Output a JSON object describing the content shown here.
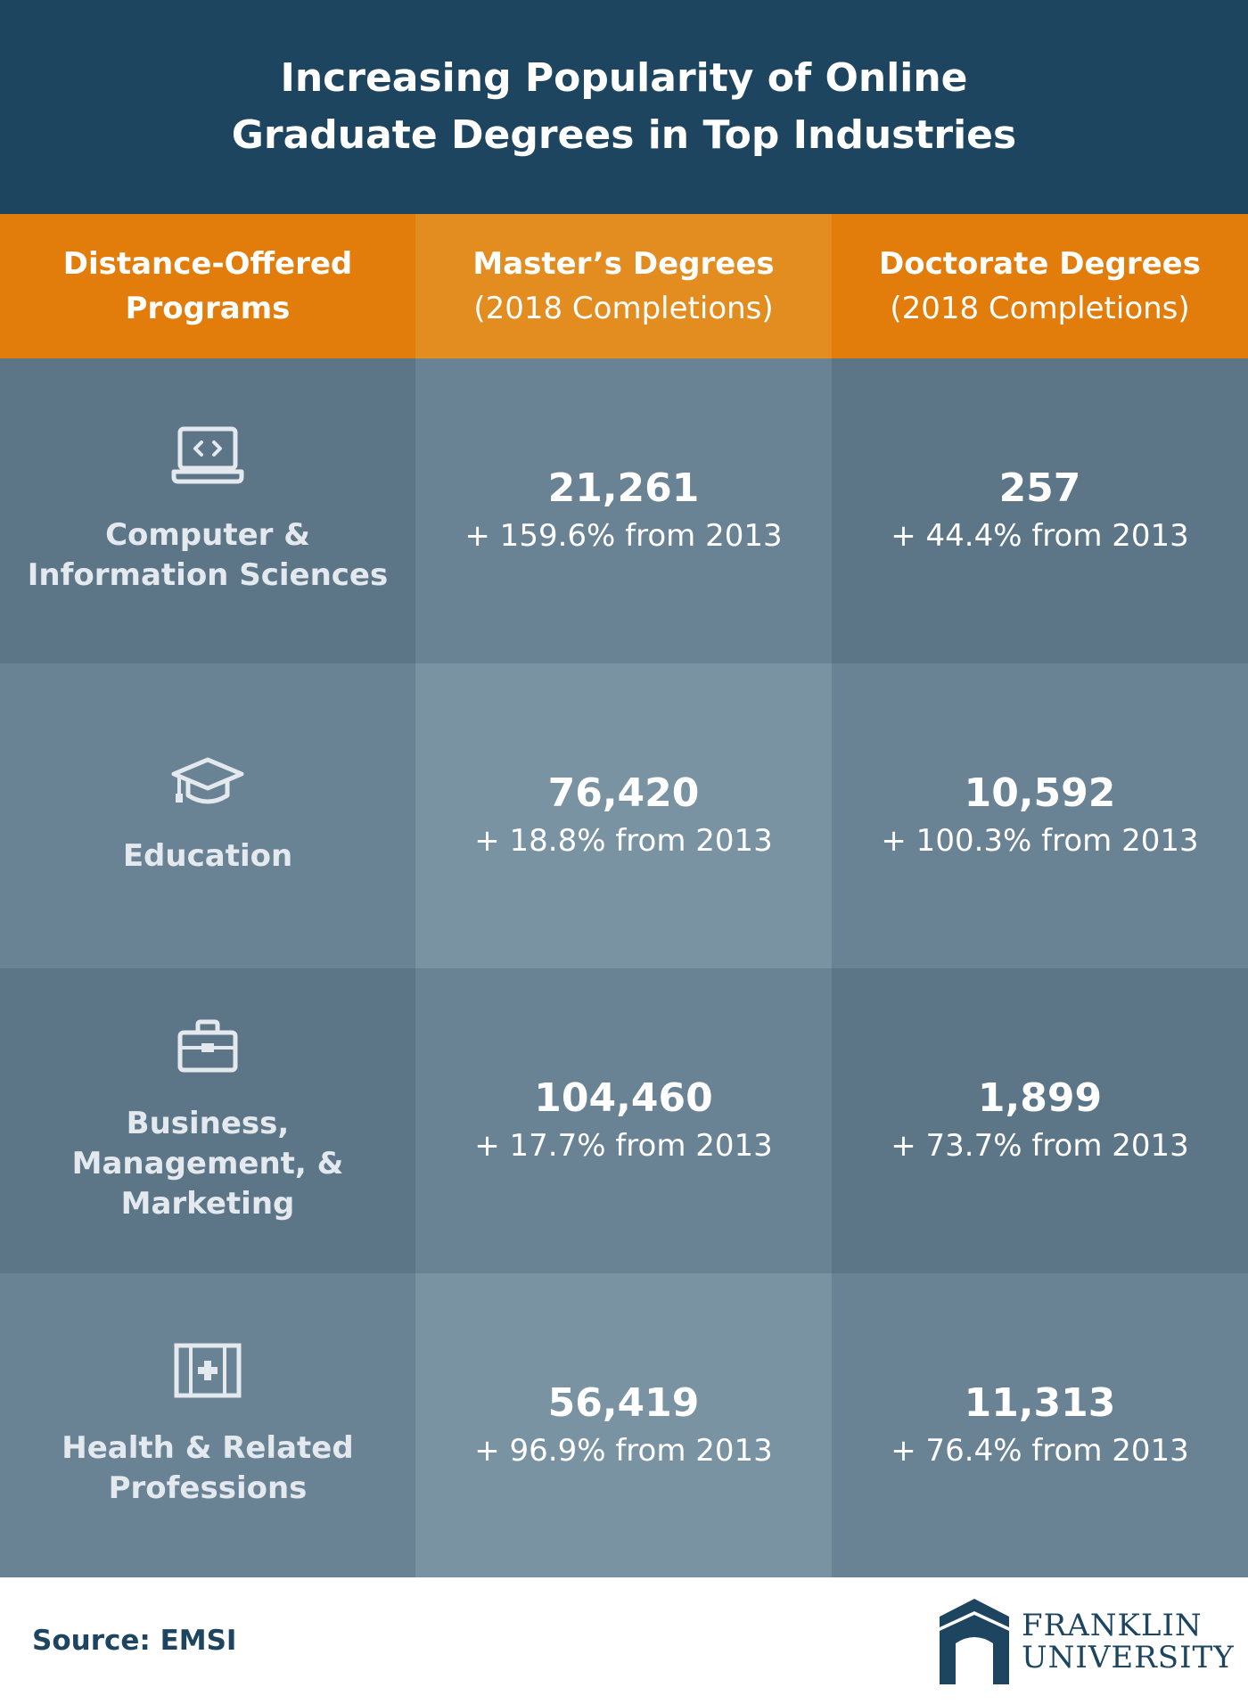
{
  "title": {
    "line1": "Increasing Popularity of Online",
    "line2": "Graduate Degrees in Top Industries"
  },
  "header": {
    "col1": {
      "line1": "Distance-Offered",
      "line2": "Programs"
    },
    "col2": {
      "line1": "Master’s Degrees",
      "line2": "(2018 Completions)"
    },
    "col3": {
      "line1": "Doctorate Degrees",
      "line2": "(2018 Completions)"
    }
  },
  "rows": [
    {
      "icon": "laptop-code-icon",
      "label": [
        "Computer &",
        "Information Sciences"
      ],
      "masters": {
        "value": "21,261",
        "change": "+ 159.6% from 2013"
      },
      "doctorate": {
        "value": "257",
        "change": "+ 44.4% from 2013"
      }
    },
    {
      "icon": "graduation-cap-icon",
      "label": [
        "Education"
      ],
      "masters": {
        "value": "76,420",
        "change": "+ 18.8% from 2013"
      },
      "doctorate": {
        "value": "10,592",
        "change": "+ 100.3% from 2013"
      }
    },
    {
      "icon": "briefcase-icon",
      "label": [
        "Business,",
        "Management, &",
        "Marketing"
      ],
      "masters": {
        "value": "104,460",
        "change": "+ 17.7% from 2013"
      },
      "doctorate": {
        "value": "1,899",
        "change": "+ 73.7% from 2013"
      }
    },
    {
      "icon": "medical-kit-icon",
      "label": [
        "Health & Related",
        "Professions"
      ],
      "masters": {
        "value": "56,419",
        "change": "+ 96.9% from 2013"
      },
      "doctorate": {
        "value": "11,313",
        "change": "+ 76.4% from 2013"
      }
    }
  ],
  "footer": {
    "source": "Source: EMSI",
    "logo_line1": "FRANKLIN",
    "logo_line2": "UNIVERSITY"
  },
  "colors": {
    "title_bg": "#1e4560",
    "header_orange": "#e27d0c",
    "header_orange_light": "#e38c20",
    "icon": "#e3e9ee"
  },
  "chart_data": {
    "type": "table",
    "title": "Increasing Popularity of Online Graduate Degrees in Top Industries",
    "columns": [
      "Distance-Offered Programs",
      "Master’s Degrees (2018 Completions)",
      "Doctorate Degrees (2018 Completions)"
    ],
    "categories": [
      "Computer & Information Sciences",
      "Education",
      "Business, Management, & Marketing",
      "Health & Related Professions"
    ],
    "series": [
      {
        "name": "Master’s Degrees",
        "values": [
          21261,
          76420,
          104460,
          56419
        ],
        "pct_change_from_2013": [
          159.6,
          18.8,
          17.7,
          96.9
        ]
      },
      {
        "name": "Doctorate Degrees",
        "values": [
          257,
          10592,
          1899,
          11313
        ],
        "pct_change_from_2013": [
          44.4,
          100.3,
          73.7,
          76.4
        ]
      }
    ],
    "source": "Source: EMSI"
  }
}
